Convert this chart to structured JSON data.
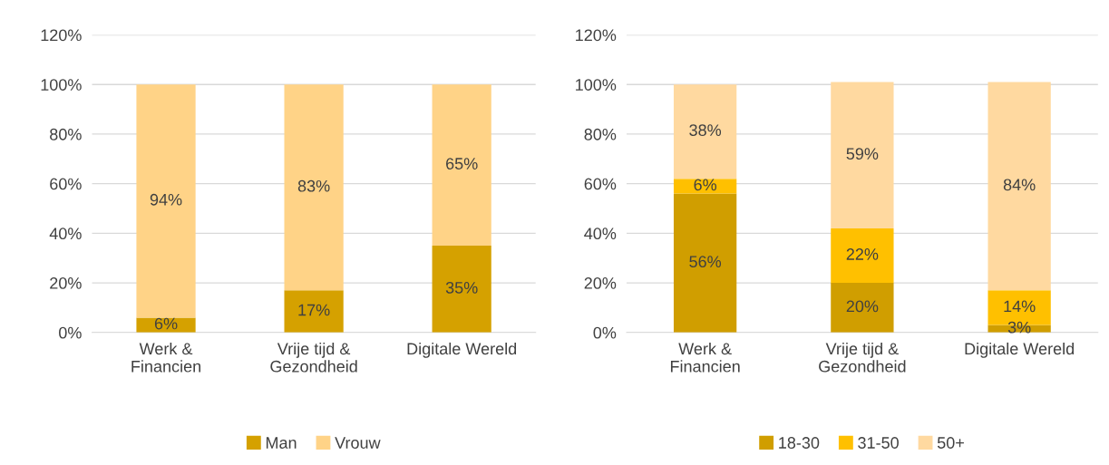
{
  "chart_data": [
    {
      "type": "bar",
      "stacked": true,
      "categories": [
        "Werk &\nFinancien",
        "Vrije tijd &\nGezondheid",
        "Digitale Wereld"
      ],
      "series": [
        {
          "name": "Man",
          "color": "#d5a100",
          "values": [
            6,
            17,
            35
          ],
          "value_labels": [
            "6%",
            "17%",
            "35%"
          ]
        },
        {
          "name": "Vrouw",
          "color": "#ffd387",
          "values": [
            94,
            83,
            65
          ],
          "value_labels": [
            "94%",
            "83%",
            "65%"
          ]
        }
      ],
      "ylim": [
        0,
        120
      ],
      "yticks": [
        {
          "value": 0,
          "label": "0%"
        },
        {
          "value": 20,
          "label": "20%"
        },
        {
          "value": 40,
          "label": "40%"
        },
        {
          "value": 60,
          "label": "60%"
        },
        {
          "value": 80,
          "label": "80%"
        },
        {
          "value": 100,
          "label": "100%"
        },
        {
          "value": 120,
          "label": "120%"
        }
      ],
      "grid": "y",
      "legend": "bottom"
    },
    {
      "type": "bar",
      "stacked": true,
      "categories": [
        "Werk &\nFinancien",
        "Vrije tijd &\nGezondheid",
        "Digitale Wereld"
      ],
      "series": [
        {
          "name": "18-30",
          "color": "#d09e00",
          "values": [
            56,
            20,
            3
          ],
          "value_labels": [
            "56%",
            "20%",
            "3%"
          ]
        },
        {
          "name": "31-50",
          "color": "#ffc000",
          "values": [
            6,
            22,
            14
          ],
          "value_labels": [
            "6%",
            "22%",
            "14%"
          ]
        },
        {
          "name": "50+",
          "color": "#ffd9a0",
          "values": [
            38,
            59,
            84
          ],
          "value_labels": [
            "38%",
            "59%",
            "84%"
          ]
        }
      ],
      "ylim": [
        0,
        120
      ],
      "yticks": [
        {
          "value": 0,
          "label": "0%"
        },
        {
          "value": 20,
          "label": "20%"
        },
        {
          "value": 40,
          "label": "40%"
        },
        {
          "value": 60,
          "label": "60%"
        },
        {
          "value": 80,
          "label": "80%"
        },
        {
          "value": 100,
          "label": "100%"
        },
        {
          "value": 120,
          "label": "120%"
        }
      ],
      "grid": "y",
      "legend": "bottom"
    }
  ]
}
